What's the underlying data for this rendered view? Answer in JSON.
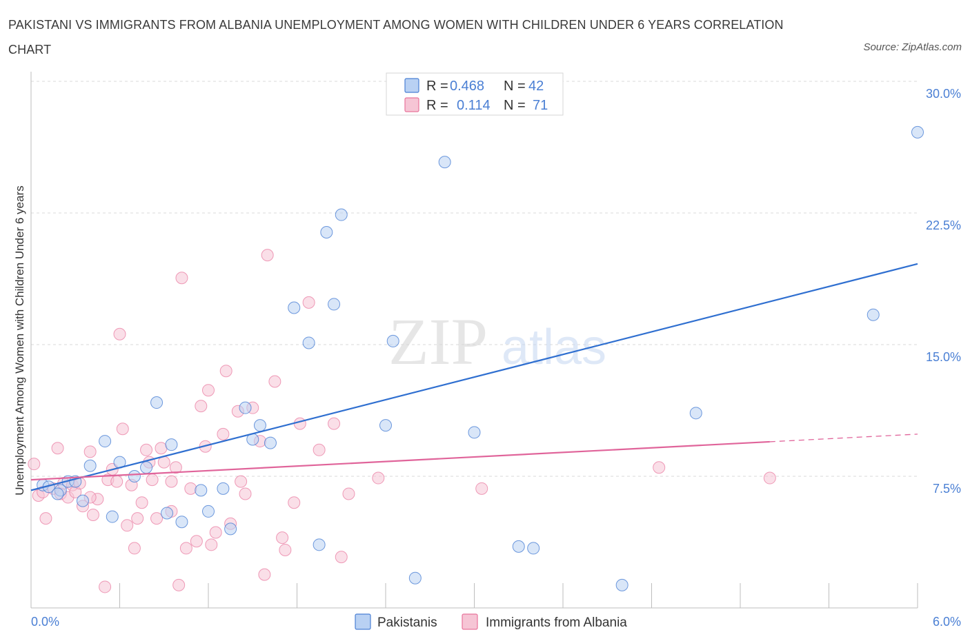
{
  "title": "PAKISTANI VS IMMIGRANTS FROM ALBANIA UNEMPLOYMENT AMONG WOMEN WITH CHILDREN UNDER 6 YEARS CORRELATION CHART",
  "source": "Source: ZipAtlas.com",
  "watermark": {
    "zip": "ZIP",
    "atlas": "atlas"
  },
  "colors": {
    "blue": "#4a7fd4",
    "blue_fill": "#b9d1f3",
    "blue_line": "#2f6fd0",
    "pink": "#e8739b",
    "pink_fill": "#f6c5d5",
    "pink_line": "#e0649a",
    "grid": "#d8d8d8"
  },
  "legend": {
    "r_label": "R =",
    "n_label": "N =",
    "series": [
      {
        "r": "0.468",
        "n": "42"
      },
      {
        "r": "0.114",
        "n": "71"
      }
    ]
  },
  "chart_data": {
    "type": "scatter",
    "xlabel": "",
    "ylabel": "Unemployment Among Women with Children Under 6 years",
    "xlim": [
      0,
      6
    ],
    "ylim": [
      0,
      30
    ],
    "x_tick_labels": [
      "0.0%",
      "6.0%"
    ],
    "y_ticks": [
      7.5,
      15.0,
      22.5,
      30.0
    ],
    "y_tick_labels": [
      "7.5%",
      "15.0%",
      "22.5%",
      "30.0%"
    ],
    "grid": true,
    "series": [
      {
        "name": "Pakistanis",
        "trend": {
          "x0": 0,
          "y0": 6.7,
          "x1": 6.0,
          "y1": 19.6,
          "dashed_from": null
        },
        "points": [
          [
            0.08,
            7.0
          ],
          [
            0.12,
            6.9
          ],
          [
            0.2,
            6.7
          ],
          [
            0.25,
            7.2
          ],
          [
            0.3,
            7.2
          ],
          [
            0.35,
            6.1
          ],
          [
            0.4,
            8.1
          ],
          [
            0.5,
            9.5
          ],
          [
            0.6,
            8.3
          ],
          [
            0.7,
            7.5
          ],
          [
            0.78,
            8.0
          ],
          [
            0.85,
            11.7
          ],
          [
            0.92,
            5.4
          ],
          [
            0.95,
            9.3
          ],
          [
            1.02,
            4.9
          ],
          [
            1.15,
            6.7
          ],
          [
            1.2,
            5.5
          ],
          [
            1.3,
            6.8
          ],
          [
            1.35,
            4.5
          ],
          [
            1.45,
            11.4
          ],
          [
            1.55,
            10.4
          ],
          [
            1.62,
            9.4
          ],
          [
            1.78,
            17.1
          ],
          [
            1.88,
            15.1
          ],
          [
            1.95,
            3.6
          ],
          [
            2.0,
            21.4
          ],
          [
            2.05,
            17.3
          ],
          [
            2.1,
            22.4
          ],
          [
            2.4,
            10.4
          ],
          [
            2.45,
            15.2
          ],
          [
            2.6,
            1.7
          ],
          [
            2.8,
            25.4
          ],
          [
            3.0,
            10.0
          ],
          [
            3.3,
            3.5
          ],
          [
            3.4,
            3.4
          ],
          [
            4.0,
            1.3
          ],
          [
            4.5,
            11.1
          ],
          [
            5.7,
            16.7
          ],
          [
            6.0,
            27.1
          ],
          [
            1.5,
            9.6
          ],
          [
            0.55,
            5.2
          ],
          [
            0.18,
            6.5
          ]
        ]
      },
      {
        "name": "Immigrants from Albania",
        "trend": {
          "x0": 0,
          "y0": 7.3,
          "x1": 6.0,
          "y1": 9.9,
          "dashed_from": 5.0
        },
        "points": [
          [
            0.02,
            8.2
          ],
          [
            0.05,
            6.4
          ],
          [
            0.08,
            6.6
          ],
          [
            0.1,
            5.1
          ],
          [
            0.15,
            6.8
          ],
          [
            0.18,
            9.1
          ],
          [
            0.2,
            6.5
          ],
          [
            0.22,
            7.1
          ],
          [
            0.25,
            6.3
          ],
          [
            0.28,
            7.0
          ],
          [
            0.3,
            6.6
          ],
          [
            0.33,
            7.1
          ],
          [
            0.35,
            5.8
          ],
          [
            0.4,
            8.9
          ],
          [
            0.42,
            5.3
          ],
          [
            0.45,
            6.2
          ],
          [
            0.5,
            1.2
          ],
          [
            0.52,
            7.3
          ],
          [
            0.55,
            7.9
          ],
          [
            0.58,
            7.2
          ],
          [
            0.6,
            15.6
          ],
          [
            0.62,
            10.2
          ],
          [
            0.65,
            4.7
          ],
          [
            0.68,
            7.0
          ],
          [
            0.7,
            3.4
          ],
          [
            0.72,
            5.1
          ],
          [
            0.75,
            6.0
          ],
          [
            0.78,
            9.0
          ],
          [
            0.8,
            8.3
          ],
          [
            0.82,
            7.3
          ],
          [
            0.85,
            5.1
          ],
          [
            0.88,
            9.1
          ],
          [
            0.9,
            8.3
          ],
          [
            0.95,
            7.2
          ],
          [
            0.98,
            8.0
          ],
          [
            1.0,
            1.3
          ],
          [
            1.02,
            18.8
          ],
          [
            1.05,
            3.4
          ],
          [
            1.08,
            6.8
          ],
          [
            1.12,
            3.8
          ],
          [
            1.15,
            11.5
          ],
          [
            1.18,
            9.2
          ],
          [
            1.2,
            12.4
          ],
          [
            1.22,
            3.6
          ],
          [
            1.25,
            4.3
          ],
          [
            1.3,
            9.9
          ],
          [
            1.32,
            13.5
          ],
          [
            1.35,
            4.8
          ],
          [
            1.4,
            11.2
          ],
          [
            1.42,
            7.2
          ],
          [
            1.45,
            6.5
          ],
          [
            1.5,
            11.4
          ],
          [
            1.55,
            9.5
          ],
          [
            1.58,
            1.9
          ],
          [
            1.6,
            20.1
          ],
          [
            1.65,
            12.9
          ],
          [
            1.7,
            4.0
          ],
          [
            1.72,
            3.3
          ],
          [
            1.78,
            6.0
          ],
          [
            1.82,
            10.5
          ],
          [
            1.88,
            17.4
          ],
          [
            1.95,
            9.0
          ],
          [
            2.05,
            10.5
          ],
          [
            2.1,
            2.9
          ],
          [
            2.15,
            6.5
          ],
          [
            2.35,
            7.4
          ],
          [
            3.05,
            6.8
          ],
          [
            4.25,
            8.0
          ],
          [
            5.0,
            7.4
          ],
          [
            0.95,
            5.5
          ],
          [
            0.4,
            6.3
          ]
        ]
      }
    ]
  },
  "bottom_legend": [
    "Pakistanis",
    "Immigrants from Albania"
  ]
}
